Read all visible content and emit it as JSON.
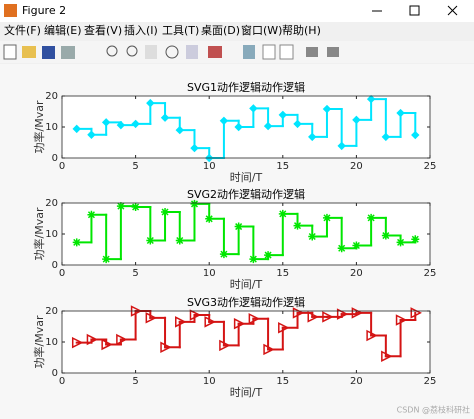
{
  "window": {
    "title": "Figure 2",
    "menu": [
      "文件(F)",
      "编辑(E)",
      "查看(V)",
      "插入(I)",
      "工具(T)",
      "桌面(D)",
      "窗口(W)",
      "帮助(H)"
    ]
  },
  "watermark": "CSDN @荔枝科研社",
  "chart_data": [
    {
      "type": "stairs",
      "title": "SVG1动作逻辑动作逻辑",
      "xlabel": "时间/T",
      "ylabel": "功率/Mvar",
      "x": [
        1,
        2,
        3,
        4,
        5,
        6,
        7,
        8,
        9,
        10,
        11,
        12,
        13,
        14,
        15,
        16,
        17,
        18,
        19,
        20,
        21,
        22,
        23,
        24
      ],
      "series": [
        {
          "color": "#00e5ff",
          "marker": "diamond",
          "values": [
            9.4,
            7.5,
            11.5,
            10.6,
            11,
            17.7,
            13,
            9,
            3.2,
            0,
            12,
            10,
            16,
            10.3,
            13.9,
            11,
            6.8,
            15.8,
            3.9,
            12.3,
            19,
            6.8,
            14.5,
            7.4
          ]
        }
      ],
      "xlim": [
        0,
        25
      ],
      "xticks": [
        0,
        5,
        10,
        15,
        20,
        25
      ],
      "ylim": [
        0,
        20
      ],
      "yticks": [
        0,
        10,
        20
      ]
    },
    {
      "type": "stairs",
      "title": "SVG2动作逻辑动作逻辑",
      "xlabel": "时间/T",
      "ylabel": "功率/Mvar",
      "x": [
        1,
        2,
        3,
        4,
        5,
        6,
        7,
        8,
        9,
        10,
        11,
        12,
        13,
        14,
        15,
        16,
        17,
        18,
        19,
        20,
        21,
        22,
        23,
        24
      ],
      "series": [
        {
          "color": "#00e600",
          "marker": "asterisk",
          "values": [
            7.3,
            16.2,
            1.9,
            19,
            18.7,
            7.9,
            17.1,
            7.9,
            19.7,
            14.9,
            3.5,
            12.4,
            1.9,
            3.2,
            16.5,
            12.7,
            9.2,
            15.2,
            5.4,
            6.3,
            15.2,
            9.5,
            7.3,
            8.3
          ]
        }
      ],
      "xlim": [
        0,
        25
      ],
      "xticks": [
        0,
        5,
        10,
        15,
        20,
        25
      ],
      "ylim": [
        0,
        20
      ],
      "yticks": [
        0,
        10,
        20
      ]
    },
    {
      "type": "stairs",
      "title": "SVG3动作逻辑动作逻辑",
      "xlabel": "时间/T",
      "ylabel": "功率/Mvar",
      "x": [
        1,
        2,
        3,
        4,
        5,
        6,
        7,
        8,
        9,
        10,
        11,
        12,
        13,
        14,
        15,
        16,
        17,
        18,
        19,
        20,
        21,
        22,
        23,
        24
      ],
      "series": [
        {
          "color": "#d41414",
          "marker": "triangle-right",
          "values": [
            9.8,
            10.8,
            9.2,
            10.8,
            20,
            17.8,
            8.3,
            16.5,
            18.7,
            16.5,
            8.9,
            15.9,
            17.5,
            7.6,
            14.6,
            19.4,
            18.1,
            18.1,
            19,
            19.4,
            12.1,
            5.4,
            17.1,
            19.4
          ]
        }
      ],
      "xlim": [
        0,
        25
      ],
      "xticks": [
        0,
        5,
        10,
        15,
        20,
        25
      ],
      "ylim": [
        0,
        20
      ],
      "yticks": [
        0,
        10,
        20
      ]
    }
  ]
}
